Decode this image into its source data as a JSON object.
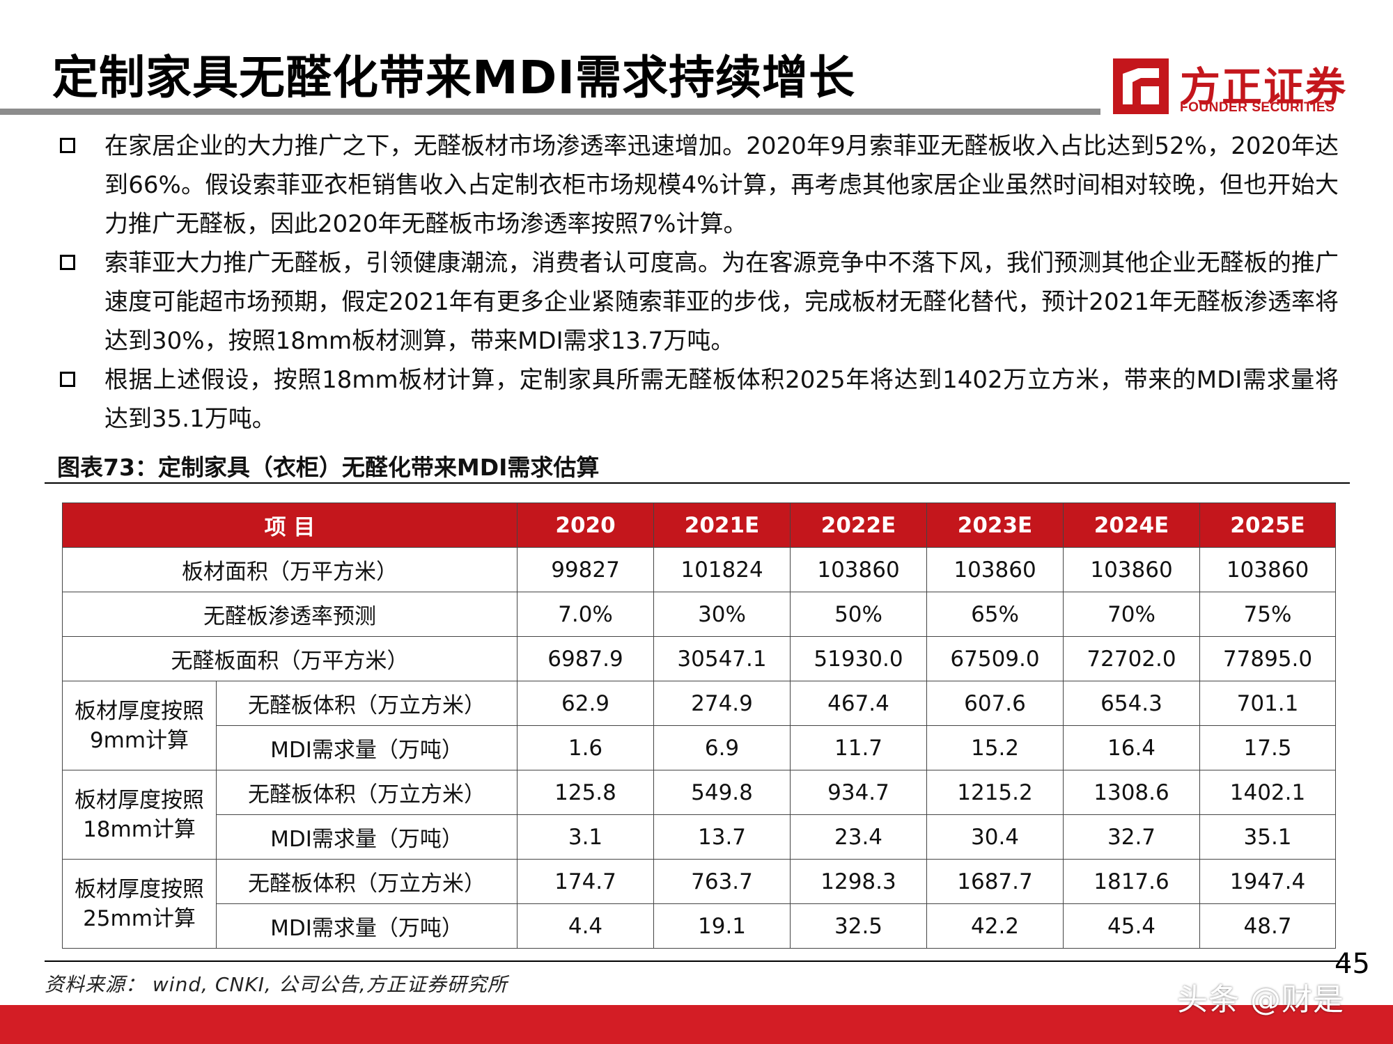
{
  "header": {
    "title": "定制家具无醛化带来MDI需求持续增长",
    "logo_cn": "方正证券",
    "logo_en": "FOUNDER SECURITIES",
    "brand_color": "#c4161c"
  },
  "bullets": [
    "在家居企业的大力推广之下，无醛板材市场渗透率迅速增加。2020年9月索菲亚无醛板收入占比达到52%，2020年达到66%。假设索菲亚衣柜销售收入占定制衣柜市场规模4%计算，再考虑其他家居企业虽然时间相对较晚，但也开始大力推广无醛板，因此2020年无醛板市场渗透率按照7%计算。",
    "索菲亚大力推广无醛板，引领健康潮流，消费者认可度高。为在客源竞争中不落下风，我们预测其他企业无醛板的推广速度可能超市场预期，假定2021年有更多企业紧随索菲亚的步伐，完成板材无醛化替代，预计2021年无醛板渗透率将达到30%，按照18mm板材测算，带来MDI需求13.7万吨。",
    "根据上述假设，按照18mm板材计算，定制家具所需无醛板体积2025年将达到1402万立方米，带来的MDI需求量将达到35.1万吨。"
  ],
  "figure": {
    "caption": "图表73：定制家具（衣柜）无醛化带来MDI需求估算",
    "source": "资料来源： wind, CNKI, 公司公告,方正证券研究所",
    "page_number": "45"
  },
  "table": {
    "header": [
      "项 目",
      "2020",
      "2021E",
      "2022E",
      "2023E",
      "2024E",
      "2025E"
    ],
    "simple_rows": [
      {
        "label": "板材面积（万平方米）",
        "values": [
          "99827",
          "101824",
          "103860",
          "103860",
          "103860",
          "103860"
        ]
      },
      {
        "label": "无醛板渗透率预测",
        "values": [
          "7.0%",
          "30%",
          "50%",
          "65%",
          "70%",
          "75%"
        ]
      },
      {
        "label": "无醛板面积（万平方米）",
        "values": [
          "6987.9",
          "30547.1",
          "51930.0",
          "67509.0",
          "72702.0",
          "77895.0"
        ]
      }
    ],
    "groups": [
      {
        "label_line1": "板材厚度按照",
        "label_line2": "9mm计算",
        "rows": [
          {
            "label": "无醛板体积（万立方米）",
            "values": [
              "62.9",
              "274.9",
              "467.4",
              "607.6",
              "654.3",
              "701.1"
            ]
          },
          {
            "label": "MDI需求量（万吨）",
            "values": [
              "1.6",
              "6.9",
              "11.7",
              "15.2",
              "16.4",
              "17.5"
            ]
          }
        ]
      },
      {
        "label_line1": "板材厚度按照",
        "label_line2": "18mm计算",
        "rows": [
          {
            "label": "无醛板体积（万立方米）",
            "values": [
              "125.8",
              "549.8",
              "934.7",
              "1215.2",
              "1308.6",
              "1402.1"
            ]
          },
          {
            "label": "MDI需求量（万吨）",
            "values": [
              "3.1",
              "13.7",
              "23.4",
              "30.4",
              "32.7",
              "35.1"
            ]
          }
        ]
      },
      {
        "label_line1": "板材厚度按照",
        "label_line2": "25mm计算",
        "rows": [
          {
            "label": "无醛板体积（万立方米）",
            "values": [
              "174.7",
              "763.7",
              "1298.3",
              "1687.7",
              "1817.6",
              "1947.4"
            ]
          },
          {
            "label": "MDI需求量（万吨）",
            "values": [
              "4.4",
              "19.1",
              "32.5",
              "42.2",
              "45.4",
              "48.7"
            ]
          }
        ]
      }
    ]
  },
  "watermark": "头条 @财是"
}
